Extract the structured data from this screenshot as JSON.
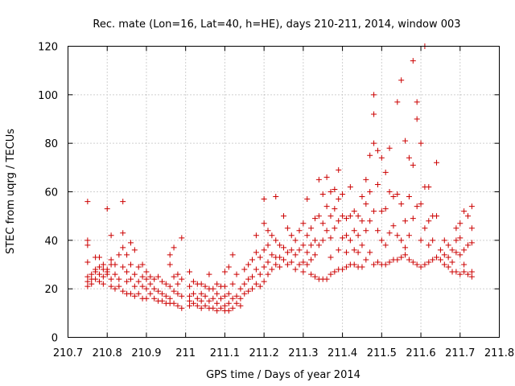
{
  "chart_data": {
    "type": "scatter",
    "title": "Rec. mate (Lon=16, Lat=40, h=HE), days 210-211, 2014, window 003",
    "xlabel": "GPS time / Days of year 2014",
    "ylabel": "STEC from uqrg / TECUs",
    "xlim": [
      210.7,
      211.8
    ],
    "ylim": [
      0,
      120
    ],
    "xticks": [
      "210.7",
      "210.8",
      "210.9",
      "211",
      "211.1",
      "211.2",
      "211.3",
      "211.4",
      "211.5",
      "211.6",
      "211.7",
      "211.8"
    ],
    "yticks": [
      "0",
      "20",
      "40",
      "60",
      "80",
      "100",
      "120"
    ],
    "grid": true,
    "marker": "plus",
    "marker_color": "#cc0000",
    "points": [
      [
        210.75,
        56
      ],
      [
        210.75,
        40
      ],
      [
        210.75,
        38
      ],
      [
        210.75,
        31
      ],
      [
        210.75,
        25
      ],
      [
        210.75,
        23
      ],
      [
        210.75,
        21
      ],
      [
        210.76,
        26
      ],
      [
        210.76,
        24
      ],
      [
        210.76,
        22
      ],
      [
        210.77,
        33
      ],
      [
        210.77,
        28
      ],
      [
        210.77,
        27
      ],
      [
        210.77,
        24
      ],
      [
        210.78,
        33
      ],
      [
        210.78,
        29
      ],
      [
        210.78,
        26
      ],
      [
        210.78,
        23
      ],
      [
        210.79,
        30
      ],
      [
        210.79,
        28
      ],
      [
        210.79,
        25
      ],
      [
        210.79,
        22
      ],
      [
        210.8,
        53
      ],
      [
        210.8,
        28
      ],
      [
        210.8,
        27
      ],
      [
        210.8,
        26
      ],
      [
        210.81,
        42
      ],
      [
        210.81,
        32
      ],
      [
        210.81,
        30
      ],
      [
        210.81,
        24
      ],
      [
        210.81,
        21
      ],
      [
        210.82,
        30
      ],
      [
        210.82,
        26
      ],
      [
        210.82,
        20
      ],
      [
        210.83,
        34
      ],
      [
        210.83,
        24
      ],
      [
        210.83,
        21
      ],
      [
        210.84,
        56
      ],
      [
        210.84,
        43
      ],
      [
        210.84,
        37
      ],
      [
        210.84,
        29
      ],
      [
        210.84,
        19
      ],
      [
        210.85,
        34
      ],
      [
        210.85,
        27
      ],
      [
        210.85,
        23
      ],
      [
        210.85,
        18
      ],
      [
        210.86,
        39
      ],
      [
        210.86,
        30
      ],
      [
        210.86,
        24
      ],
      [
        210.86,
        18
      ],
      [
        210.87,
        36
      ],
      [
        210.87,
        26
      ],
      [
        210.87,
        21
      ],
      [
        210.87,
        17
      ],
      [
        210.88,
        29
      ],
      [
        210.88,
        23
      ],
      [
        210.88,
        18
      ],
      [
        210.89,
        30
      ],
      [
        210.89,
        25
      ],
      [
        210.89,
        21
      ],
      [
        210.89,
        16
      ],
      [
        210.9,
        27
      ],
      [
        210.9,
        24
      ],
      [
        210.9,
        20
      ],
      [
        210.9,
        16
      ],
      [
        210.91,
        25
      ],
      [
        210.91,
        22
      ],
      [
        210.91,
        18
      ],
      [
        210.92,
        24
      ],
      [
        210.92,
        20
      ],
      [
        210.92,
        16
      ],
      [
        210.93,
        25
      ],
      [
        210.93,
        19
      ],
      [
        210.93,
        15
      ],
      [
        210.94,
        23
      ],
      [
        210.94,
        18
      ],
      [
        210.94,
        15
      ],
      [
        210.95,
        22
      ],
      [
        210.95,
        17
      ],
      [
        210.95,
        14
      ],
      [
        210.96,
        34
      ],
      [
        210.96,
        30
      ],
      [
        210.96,
        21
      ],
      [
        210.96,
        16
      ],
      [
        210.96,
        14
      ],
      [
        210.97,
        37
      ],
      [
        210.97,
        25
      ],
      [
        210.97,
        19
      ],
      [
        210.97,
        14
      ],
      [
        210.98,
        26
      ],
      [
        210.98,
        22
      ],
      [
        210.98,
        18
      ],
      [
        210.98,
        13
      ],
      [
        210.99,
        41
      ],
      [
        210.99,
        24
      ],
      [
        210.99,
        17
      ],
      [
        210.99,
        12
      ],
      [
        211.01,
        27
      ],
      [
        211.01,
        21
      ],
      [
        211.01,
        17
      ],
      [
        211.01,
        15
      ],
      [
        211.01,
        13
      ],
      [
        211.02,
        23
      ],
      [
        211.02,
        18
      ],
      [
        211.02,
        14
      ],
      [
        211.03,
        22
      ],
      [
        211.03,
        16
      ],
      [
        211.03,
        13
      ],
      [
        211.04,
        22
      ],
      [
        211.04,
        18
      ],
      [
        211.04,
        15
      ],
      [
        211.04,
        12
      ],
      [
        211.05,
        21
      ],
      [
        211.05,
        17
      ],
      [
        211.05,
        13
      ],
      [
        211.06,
        26
      ],
      [
        211.06,
        20
      ],
      [
        211.06,
        15
      ],
      [
        211.06,
        12
      ],
      [
        211.07,
        20
      ],
      [
        211.07,
        16
      ],
      [
        211.07,
        12
      ],
      [
        211.08,
        22
      ],
      [
        211.08,
        18
      ],
      [
        211.08,
        14
      ],
      [
        211.08,
        11
      ],
      [
        211.09,
        21
      ],
      [
        211.09,
        16
      ],
      [
        211.09,
        12
      ],
      [
        211.1,
        27
      ],
      [
        211.1,
        21
      ],
      [
        211.1,
        17
      ],
      [
        211.1,
        13
      ],
      [
        211.1,
        11
      ],
      [
        211.11,
        29
      ],
      [
        211.11,
        18
      ],
      [
        211.11,
        14
      ],
      [
        211.11,
        11
      ],
      [
        211.12,
        34
      ],
      [
        211.12,
        22
      ],
      [
        211.12,
        16
      ],
      [
        211.12,
        12
      ],
      [
        211.13,
        26
      ],
      [
        211.13,
        17
      ],
      [
        211.13,
        14
      ],
      [
        211.14,
        20
      ],
      [
        211.14,
        16
      ],
      [
        211.14,
        13
      ],
      [
        211.15,
        28
      ],
      [
        211.15,
        22
      ],
      [
        211.15,
        18
      ],
      [
        211.16,
        30
      ],
      [
        211.16,
        24
      ],
      [
        211.16,
        19
      ],
      [
        211.17,
        32
      ],
      [
        211.17,
        25
      ],
      [
        211.17,
        20
      ],
      [
        211.18,
        42
      ],
      [
        211.18,
        35
      ],
      [
        211.18,
        28
      ],
      [
        211.18,
        22
      ],
      [
        211.19,
        33
      ],
      [
        211.19,
        26
      ],
      [
        211.19,
        21
      ],
      [
        211.2,
        57
      ],
      [
        211.2,
        47
      ],
      [
        211.2,
        36
      ],
      [
        211.2,
        29
      ],
      [
        211.2,
        23
      ],
      [
        211.21,
        44
      ],
      [
        211.21,
        38
      ],
      [
        211.21,
        31
      ],
      [
        211.21,
        26
      ],
      [
        211.22,
        42
      ],
      [
        211.22,
        34
      ],
      [
        211.22,
        28
      ],
      [
        211.23,
        58
      ],
      [
        211.23,
        40
      ],
      [
        211.23,
        33
      ],
      [
        211.23,
        30
      ],
      [
        211.24,
        38
      ],
      [
        211.24,
        33
      ],
      [
        211.24,
        29
      ],
      [
        211.25,
        50
      ],
      [
        211.25,
        37
      ],
      [
        211.25,
        32
      ],
      [
        211.26,
        45
      ],
      [
        211.26,
        35
      ],
      [
        211.26,
        30
      ],
      [
        211.27,
        42
      ],
      [
        211.27,
        36
      ],
      [
        211.27,
        31
      ],
      [
        211.28,
        40
      ],
      [
        211.28,
        34
      ],
      [
        211.28,
        28
      ],
      [
        211.29,
        44
      ],
      [
        211.29,
        36
      ],
      [
        211.29,
        30
      ],
      [
        211.3,
        47
      ],
      [
        211.3,
        38
      ],
      [
        211.3,
        31
      ],
      [
        211.3,
        27
      ],
      [
        211.31,
        57
      ],
      [
        211.31,
        42
      ],
      [
        211.31,
        35
      ],
      [
        211.31,
        30
      ],
      [
        211.32,
        45
      ],
      [
        211.32,
        38
      ],
      [
        211.32,
        32
      ],
      [
        211.32,
        26
      ],
      [
        211.33,
        49
      ],
      [
        211.33,
        40
      ],
      [
        211.33,
        34
      ],
      [
        211.33,
        25
      ],
      [
        211.34,
        65
      ],
      [
        211.34,
        50
      ],
      [
        211.34,
        38
      ],
      [
        211.34,
        24
      ],
      [
        211.35,
        59
      ],
      [
        211.35,
        47
      ],
      [
        211.35,
        40
      ],
      [
        211.35,
        24
      ],
      [
        211.36,
        66
      ],
      [
        211.36,
        54
      ],
      [
        211.36,
        44
      ],
      [
        211.36,
        24
      ],
      [
        211.37,
        60
      ],
      [
        211.37,
        50
      ],
      [
        211.37,
        41
      ],
      [
        211.37,
        33
      ],
      [
        211.37,
        26
      ],
      [
        211.38,
        61
      ],
      [
        211.38,
        53
      ],
      [
        211.38,
        45
      ],
      [
        211.38,
        27
      ],
      [
        211.39,
        69
      ],
      [
        211.39,
        57
      ],
      [
        211.39,
        48
      ],
      [
        211.39,
        36
      ],
      [
        211.39,
        28
      ],
      [
        211.4,
        59
      ],
      [
        211.4,
        50
      ],
      [
        211.4,
        41
      ],
      [
        211.4,
        28
      ],
      [
        211.41,
        49
      ],
      [
        211.41,
        42
      ],
      [
        211.41,
        35
      ],
      [
        211.41,
        29
      ],
      [
        211.42,
        62
      ],
      [
        211.42,
        50
      ],
      [
        211.42,
        40
      ],
      [
        211.42,
        30
      ],
      [
        211.43,
        52
      ],
      [
        211.43,
        44
      ],
      [
        211.43,
        36
      ],
      [
        211.43,
        30
      ],
      [
        211.44,
        50
      ],
      [
        211.44,
        42
      ],
      [
        211.44,
        35
      ],
      [
        211.44,
        29
      ],
      [
        211.45,
        58
      ],
      [
        211.45,
        48
      ],
      [
        211.45,
        38
      ],
      [
        211.45,
        29
      ],
      [
        211.46,
        65
      ],
      [
        211.46,
        55
      ],
      [
        211.46,
        44
      ],
      [
        211.46,
        32
      ],
      [
        211.47,
        75
      ],
      [
        211.47,
        60
      ],
      [
        211.47,
        48
      ],
      [
        211.47,
        35
      ],
      [
        211.48,
        92
      ],
      [
        211.48,
        100
      ],
      [
        211.48,
        80
      ],
      [
        211.48,
        52
      ],
      [
        211.48,
        30
      ],
      [
        211.49,
        77
      ],
      [
        211.49,
        63
      ],
      [
        211.49,
        44
      ],
      [
        211.49,
        31
      ],
      [
        211.5,
        74
      ],
      [
        211.5,
        52
      ],
      [
        211.5,
        40
      ],
      [
        211.5,
        30
      ],
      [
        211.51,
        68
      ],
      [
        211.51,
        53
      ],
      [
        211.51,
        38
      ],
      [
        211.51,
        30
      ],
      [
        211.52,
        78
      ],
      [
        211.52,
        60
      ],
      [
        211.52,
        43
      ],
      [
        211.52,
        31
      ],
      [
        211.53,
        58
      ],
      [
        211.53,
        46
      ],
      [
        211.53,
        32
      ],
      [
        211.54,
        97
      ],
      [
        211.54,
        59
      ],
      [
        211.54,
        42
      ],
      [
        211.54,
        32
      ],
      [
        211.55,
        106
      ],
      [
        211.55,
        55
      ],
      [
        211.55,
        40
      ],
      [
        211.55,
        33
      ],
      [
        211.56,
        81
      ],
      [
        211.56,
        48
      ],
      [
        211.56,
        37
      ],
      [
        211.56,
        34
      ],
      [
        211.57,
        74
      ],
      [
        211.57,
        58
      ],
      [
        211.57,
        42
      ],
      [
        211.57,
        32
      ],
      [
        211.58,
        114
      ],
      [
        211.58,
        71
      ],
      [
        211.58,
        49
      ],
      [
        211.58,
        31
      ],
      [
        211.59,
        97
      ],
      [
        211.59,
        90
      ],
      [
        211.59,
        54
      ],
      [
        211.59,
        30
      ],
      [
        211.6,
        80
      ],
      [
        211.6,
        55
      ],
      [
        211.6,
        40
      ],
      [
        211.6,
        29
      ],
      [
        211.61,
        120
      ],
      [
        211.61,
        62
      ],
      [
        211.61,
        45
      ],
      [
        211.61,
        30
      ],
      [
        211.62,
        62
      ],
      [
        211.62,
        48
      ],
      [
        211.62,
        38
      ],
      [
        211.62,
        31
      ],
      [
        211.63,
        50
      ],
      [
        211.63,
        40
      ],
      [
        211.63,
        32
      ],
      [
        211.64,
        72
      ],
      [
        211.64,
        50
      ],
      [
        211.64,
        33
      ],
      [
        211.65,
        36
      ],
      [
        211.65,
        32
      ],
      [
        211.66,
        40
      ],
      [
        211.66,
        34
      ],
      [
        211.66,
        30
      ],
      [
        211.67,
        38
      ],
      [
        211.67,
        33
      ],
      [
        211.67,
        29
      ],
      [
        211.68,
        36
      ],
      [
        211.68,
        31
      ],
      [
        211.68,
        27
      ],
      [
        211.69,
        45
      ],
      [
        211.69,
        40
      ],
      [
        211.69,
        35
      ],
      [
        211.69,
        27
      ],
      [
        211.7,
        47
      ],
      [
        211.7,
        41
      ],
      [
        211.7,
        34
      ],
      [
        211.7,
        26
      ],
      [
        211.71,
        52
      ],
      [
        211.71,
        36
      ],
      [
        211.71,
        30
      ],
      [
        211.71,
        27
      ],
      [
        211.72,
        50
      ],
      [
        211.72,
        38
      ],
      [
        211.72,
        26
      ],
      [
        211.73,
        54
      ],
      [
        211.73,
        45
      ],
      [
        211.73,
        39
      ],
      [
        211.73,
        27
      ],
      [
        211.73,
        25
      ]
    ]
  }
}
